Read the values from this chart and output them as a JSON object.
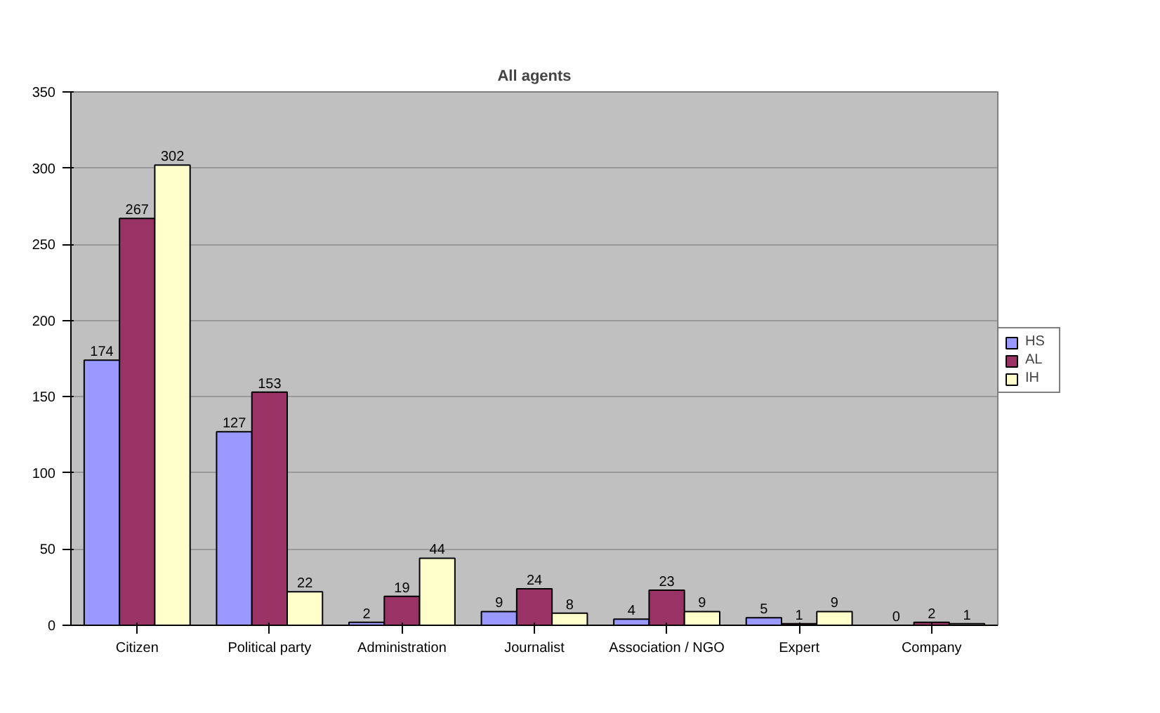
{
  "chart_data": {
    "type": "bar",
    "title": "All agents",
    "categories": [
      "Citizen",
      "Political party",
      "Administration",
      "Journalist",
      "Association / NGO",
      "Expert",
      "Company"
    ],
    "series": [
      {
        "name": "HS",
        "color": "#9999ff",
        "values": [
          174,
          127,
          2,
          9,
          4,
          5,
          0
        ]
      },
      {
        "name": "AL",
        "color": "#993366",
        "values": [
          267,
          153,
          19,
          24,
          23,
          1,
          2
        ]
      },
      {
        "name": "IH",
        "color": "#ffffcc",
        "values": [
          302,
          22,
          44,
          8,
          9,
          9,
          1
        ]
      }
    ],
    "ylim": [
      0,
      350
    ],
    "yticks": [
      0,
      50,
      100,
      150,
      200,
      250,
      300,
      350
    ],
    "grid": "y",
    "legend": "right",
    "data_labels": true
  }
}
